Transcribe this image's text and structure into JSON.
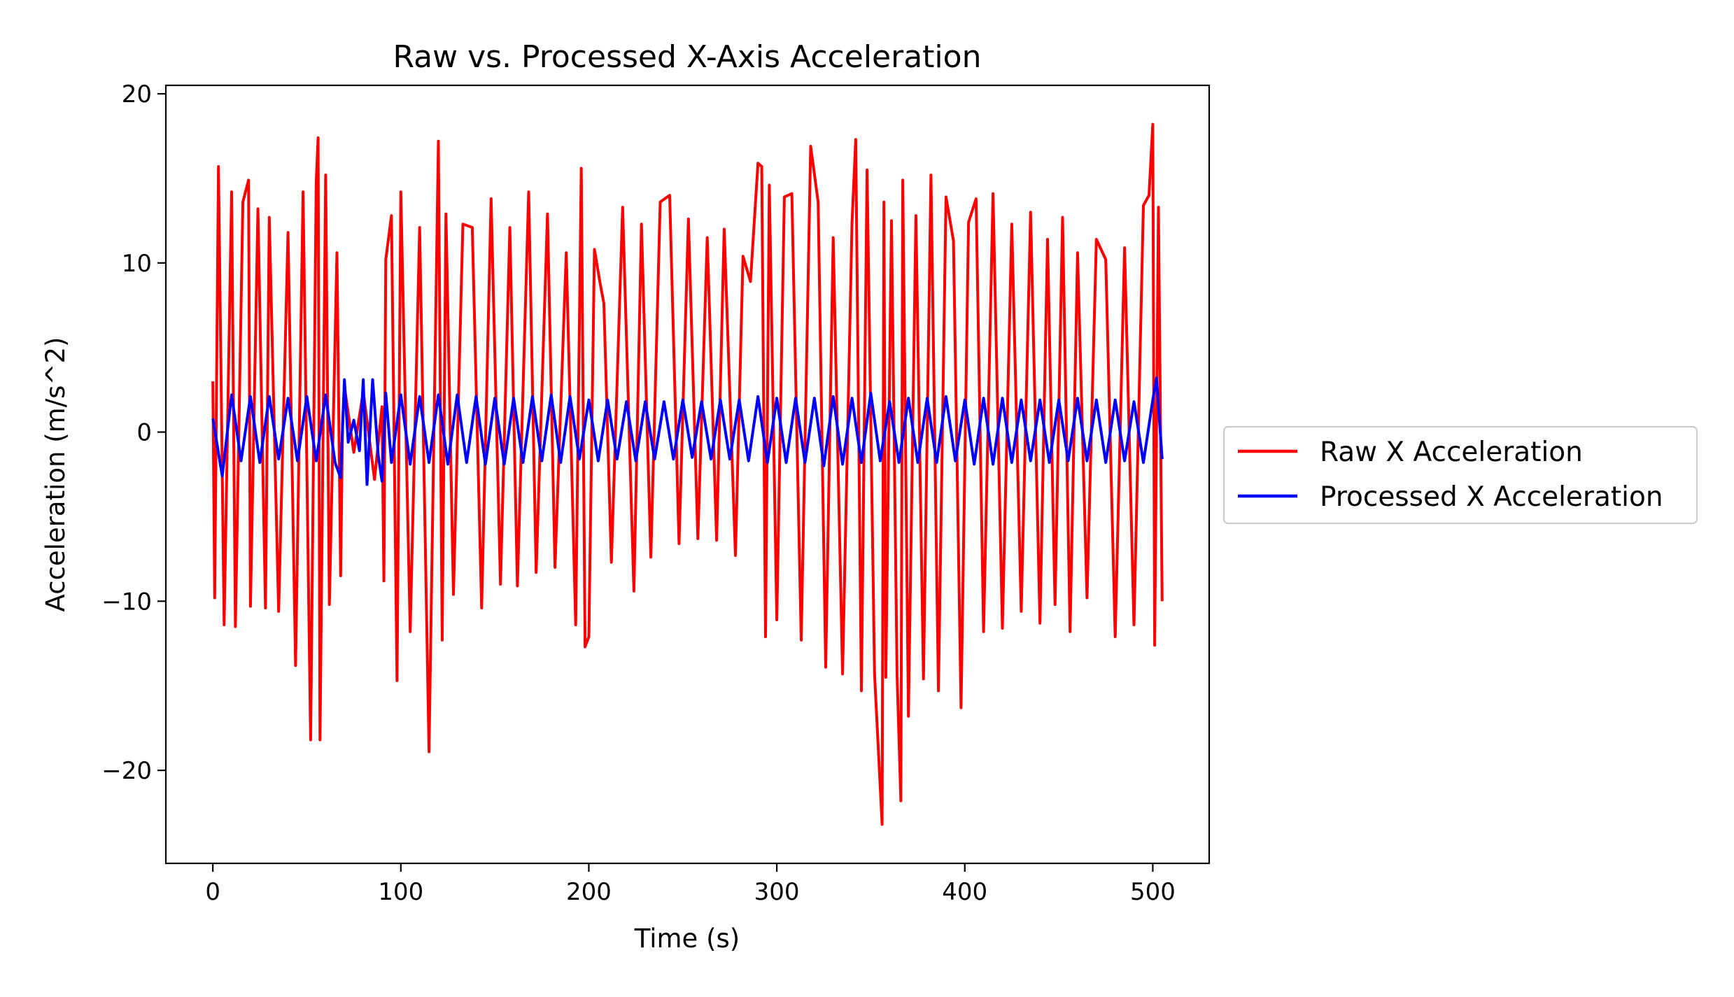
{
  "chart_data": {
    "type": "line",
    "title": "Raw vs. Processed X-Axis Acceleration",
    "xlabel": "Time (s)",
    "ylabel": "Acceleration (m/s^2)",
    "xlim": [
      -25,
      530
    ],
    "ylim": [
      -25.5,
      20.5
    ],
    "x_ticks": [
      0,
      100,
      200,
      300,
      400,
      500
    ],
    "x_tick_labels": [
      "0",
      "100",
      "200",
      "300",
      "400",
      "500"
    ],
    "y_ticks": [
      -20,
      -10,
      0,
      10,
      20
    ],
    "y_tick_labels": [
      "−20",
      "−10",
      "0",
      "10",
      "20"
    ],
    "grid": false,
    "legend_position": "outside-right",
    "series": [
      {
        "name": "Raw X Acceleration",
        "color": "#ff0000",
        "x": [
          0,
          1,
          3,
          6,
          10,
          12,
          16,
          19,
          20,
          24,
          28,
          30,
          35,
          40,
          44,
          48,
          52,
          55,
          56,
          57,
          60,
          62,
          66,
          68,
          69,
          70,
          75,
          80,
          86,
          90,
          91,
          92,
          95,
          98,
          100,
          105,
          110,
          115,
          120,
          122,
          124,
          128,
          133,
          138,
          143,
          148,
          153,
          158,
          162,
          168,
          172,
          178,
          182,
          188,
          193,
          196,
          198,
          200,
          203,
          206,
          208,
          212,
          218,
          224,
          228,
          233,
          238,
          243,
          248,
          253,
          258,
          263,
          268,
          272,
          278,
          282,
          286,
          290,
          292,
          294,
          296,
          300,
          304,
          308,
          313,
          318,
          322,
          326,
          330,
          335,
          340,
          342,
          345,
          348,
          352,
          356,
          357,
          358,
          361,
          364,
          366,
          367,
          370,
          374,
          378,
          382,
          386,
          390,
          394,
          398,
          402,
          406,
          410,
          415,
          420,
          425,
          430,
          435,
          440,
          444,
          448,
          452,
          456,
          460,
          465,
          470,
          475,
          480,
          485,
          490,
          495,
          498,
          500,
          501,
          503,
          505
        ],
        "y": [
          3,
          -9.8,
          15.7,
          -11.4,
          14.2,
          -11.5,
          13.6,
          14.9,
          -10.3,
          13.2,
          -10.4,
          12.7,
          -10.6,
          11.8,
          -13.8,
          14.2,
          -18.2,
          14.8,
          17.4,
          -18.2,
          15.2,
          -10.2,
          10.6,
          -8.5,
          0.5,
          2.7,
          -1.2,
          2.4,
          -2.8,
          1.5,
          -8.8,
          10.2,
          12.8,
          -14.7,
          14.2,
          -11.8,
          12.1,
          -18.9,
          17.2,
          -12.3,
          12.9,
          -9.6,
          12.3,
          12.1,
          -10.4,
          13.8,
          -9.0,
          12.1,
          -9.1,
          14.2,
          -8.3,
          12.9,
          -8.0,
          10.6,
          -11.4,
          15.6,
          -12.7,
          -12.1,
          10.8,
          8.8,
          7.6,
          -7.7,
          13.3,
          -9.4,
          12.3,
          -7.4,
          13.6,
          14.0,
          -6.6,
          12.6,
          -6.3,
          11.5,
          -6.4,
          12.0,
          -7.3,
          10.4,
          8.9,
          15.9,
          15.7,
          -12.1,
          14.6,
          -11.1,
          13.9,
          14.1,
          -12.3,
          16.9,
          13.6,
          -13.9,
          11.5,
          -14.3,
          12.4,
          17.3,
          -15.3,
          15.5,
          -14.3,
          -23.2,
          13.6,
          -14.5,
          12.5,
          -14.4,
          -21.8,
          14.9,
          -16.8,
          12.8,
          -14.6,
          15.2,
          -15.3,
          13.9,
          11.3,
          -16.3,
          12.4,
          13.8,
          -11.8,
          14.1,
          -11.6,
          12.3,
          -10.6,
          13.0,
          -11.3,
          11.4,
          -10.2,
          12.7,
          -11.8,
          10.6,
          -9.8,
          11.4,
          10.2,
          -12.1,
          10.9,
          -11.4,
          13.4,
          14.0,
          18.2,
          -12.6,
          13.3,
          -10.0
        ]
      },
      {
        "name": "Processed X Acceleration",
        "color": "#0000ff",
        "x": [
          0,
          5,
          10,
          15,
          20,
          25,
          30,
          35,
          40,
          45,
          50,
          55,
          60,
          65,
          68,
          70,
          72,
          75,
          78,
          80,
          82,
          85,
          88,
          90,
          92,
          95,
          100,
          105,
          110,
          115,
          120,
          125,
          130,
          135,
          140,
          145,
          150,
          155,
          160,
          165,
          170,
          175,
          180,
          185,
          190,
          195,
          200,
          205,
          210,
          215,
          220,
          225,
          230,
          235,
          240,
          245,
          250,
          255,
          260,
          265,
          270,
          275,
          280,
          285,
          290,
          295,
          300,
          305,
          310,
          315,
          320,
          325,
          330,
          335,
          340,
          345,
          350,
          355,
          360,
          365,
          370,
          375,
          380,
          385,
          390,
          395,
          400,
          405,
          410,
          415,
          420,
          425,
          430,
          435,
          440,
          445,
          450,
          455,
          460,
          465,
          470,
          475,
          480,
          485,
          490,
          495,
          500,
          502,
          505
        ],
        "y": [
          0.8,
          -2.6,
          2.2,
          -1.7,
          2.1,
          -1.8,
          2.1,
          -1.6,
          2.0,
          -1.7,
          2.1,
          -1.7,
          2.2,
          -1.8,
          -2.7,
          3.1,
          -0.6,
          0.7,
          -1.1,
          3.1,
          -3.1,
          3.1,
          -1.4,
          -2.9,
          2.3,
          -1.8,
          2.2,
          -1.9,
          2.1,
          -1.8,
          2.2,
          -1.9,
          2.2,
          -1.8,
          2.1,
          -1.9,
          2.0,
          -1.9,
          2.0,
          -1.8,
          2.1,
          -1.7,
          2.2,
          -1.8,
          2.1,
          -1.6,
          1.9,
          -1.7,
          1.9,
          -1.6,
          1.8,
          -1.7,
          1.8,
          -1.6,
          1.8,
          -1.6,
          1.9,
          -1.5,
          1.8,
          -1.6,
          1.9,
          -1.6,
          1.9,
          -1.7,
          2.1,
          -1.8,
          2.0,
          -1.8,
          2.0,
          -1.8,
          2.0,
          -2.0,
          2.1,
          -1.9,
          2.0,
          -1.8,
          2.3,
          -1.7,
          1.8,
          -1.8,
          2.0,
          -1.8,
          2.0,
          -1.8,
          2.1,
          -1.7,
          1.9,
          -1.9,
          2.0,
          -1.9,
          2.0,
          -1.8,
          1.9,
          -1.7,
          1.9,
          -1.8,
          1.9,
          -1.7,
          2.0,
          -1.7,
          1.9,
          -1.8,
          1.9,
          -1.7,
          1.8,
          -1.8,
          1.9,
          3.2,
          -1.6
        ]
      }
    ]
  }
}
